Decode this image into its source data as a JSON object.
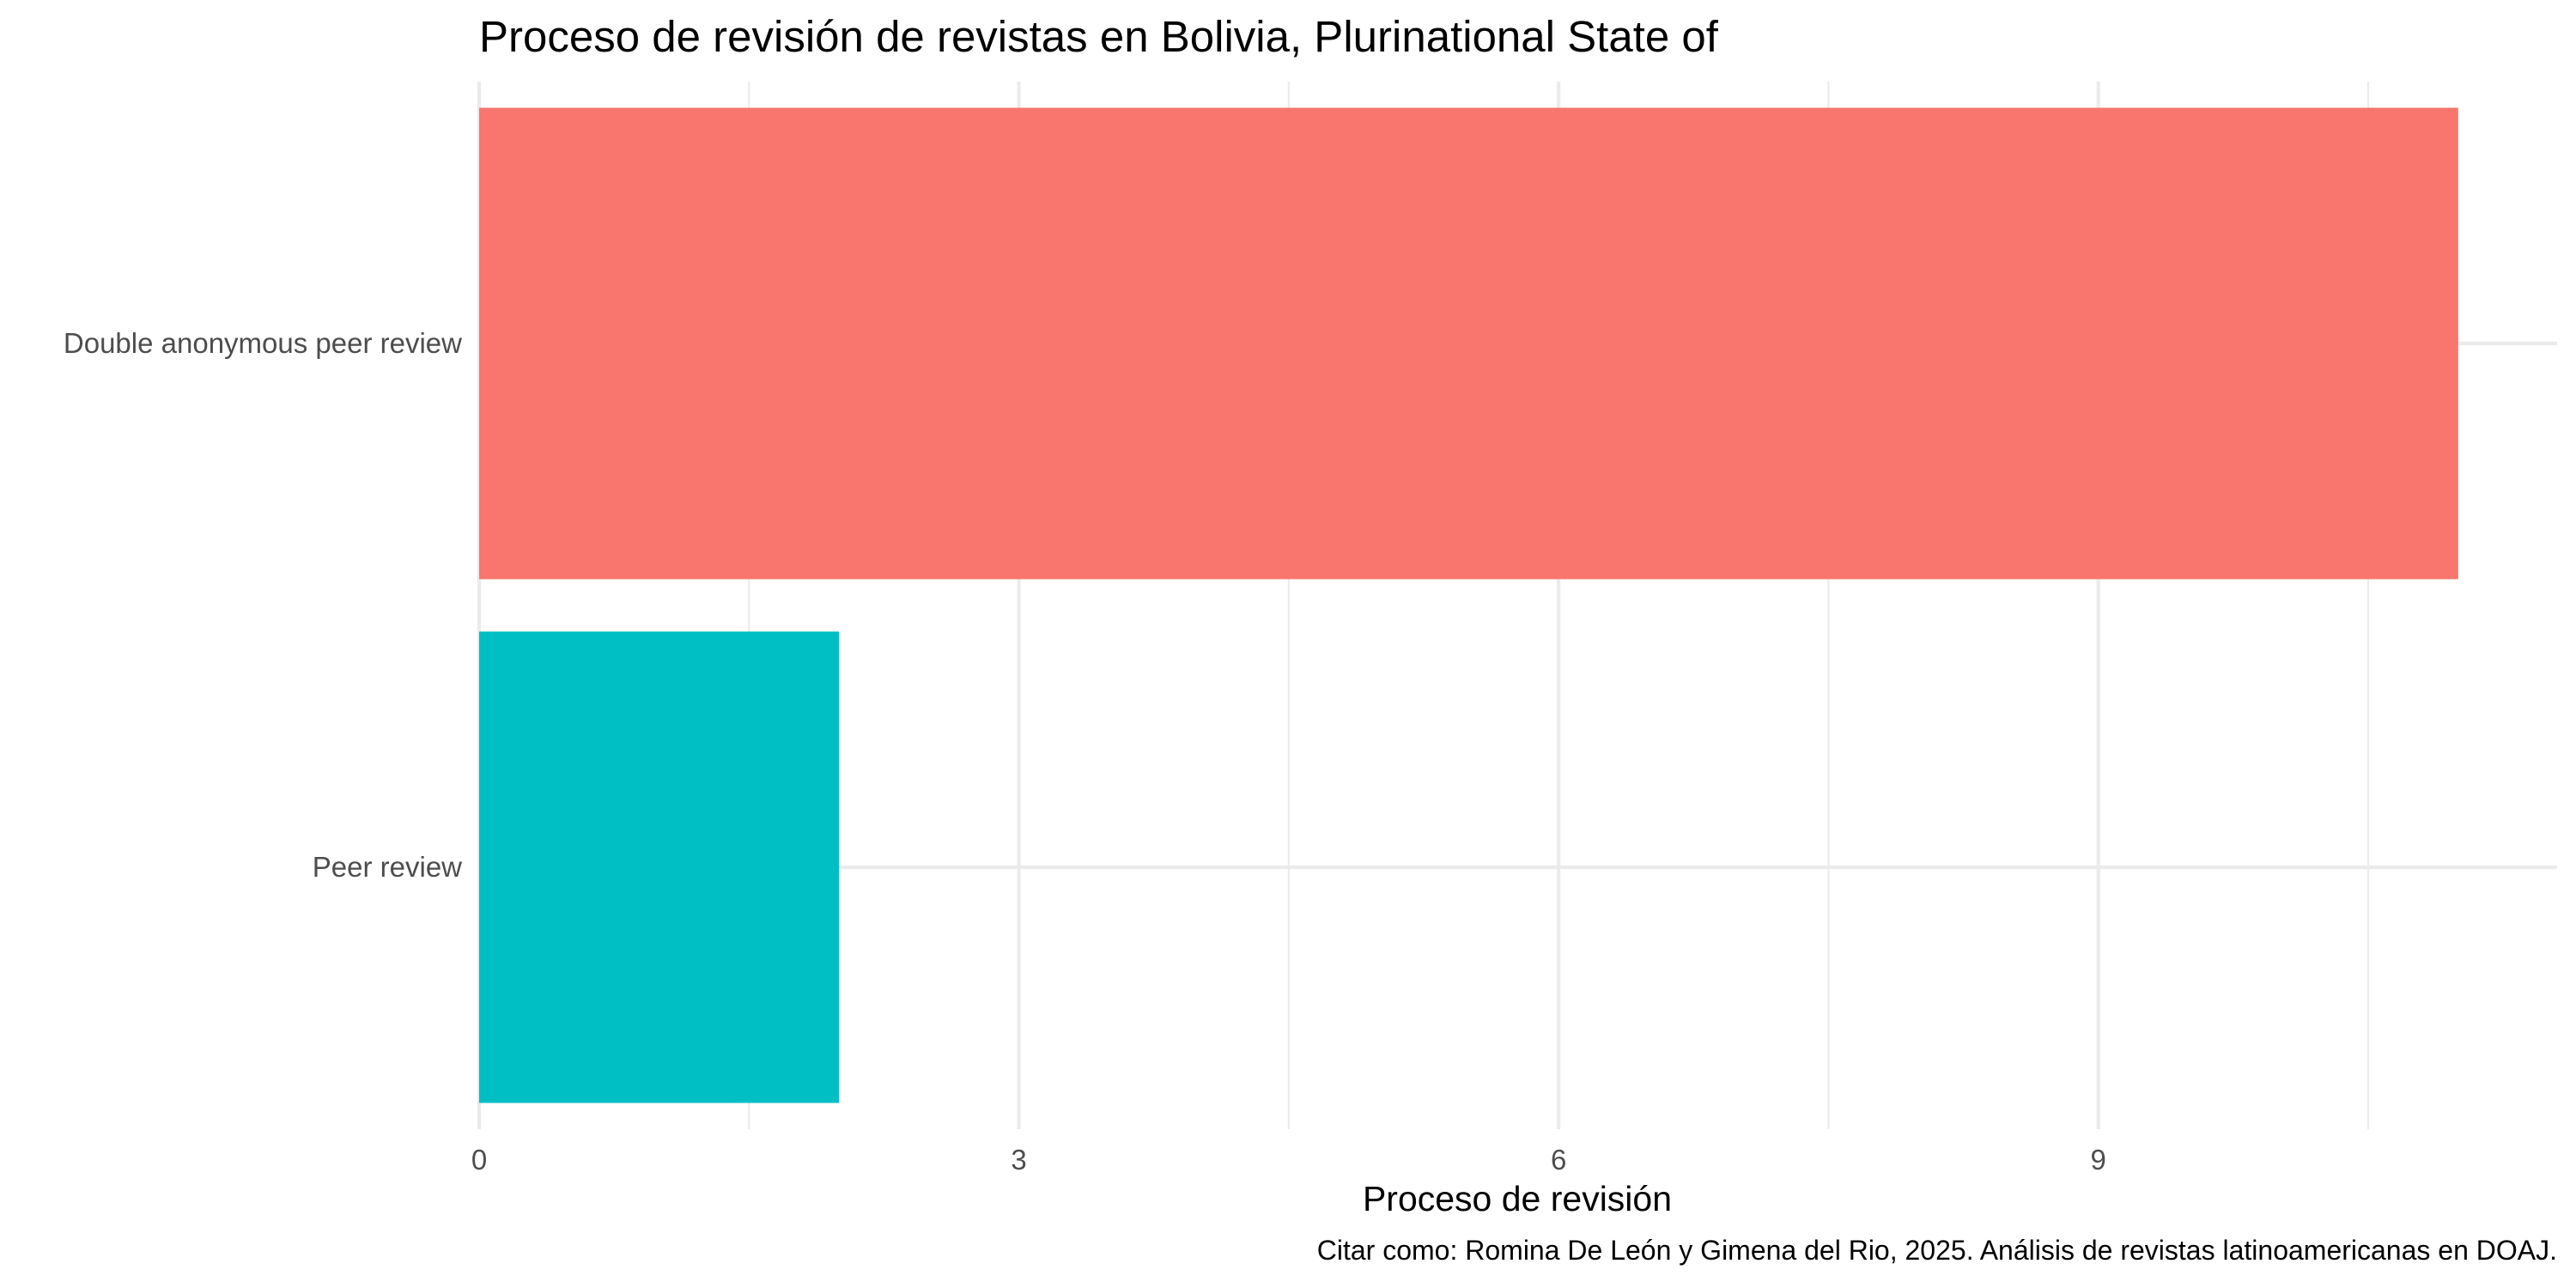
{
  "chart_data": {
    "type": "bar",
    "orientation": "horizontal",
    "title": "Proceso de revisión de revistas en Bolivia, Plurinational State of",
    "xlabel": "Proceso de revisión",
    "ylabel": "",
    "caption": "Citar como: Romina De León y Gimena del Rio, 2025. Análisis de revistas latinoamericanas en DOAJ.",
    "categories": [
      "Double anonymous peer review",
      "Peer review"
    ],
    "values": [
      11,
      2
    ],
    "bar_colors": [
      "#F8766D",
      "#00BFC4"
    ],
    "x_ticks": [
      "0",
      "3",
      "6",
      "9"
    ],
    "xlim": [
      0,
      11.55
    ],
    "grid": true,
    "legend": "none"
  }
}
